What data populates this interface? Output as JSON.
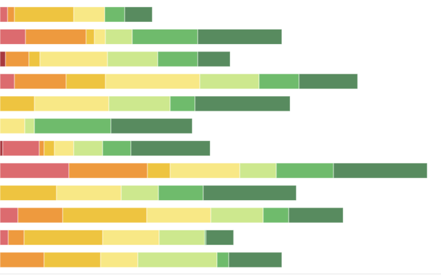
{
  "chart_data": {
    "type": "bar",
    "orientation": "horizontal",
    "stacked": true,
    "title": "",
    "xlabel": "",
    "ylabel": "",
    "grid": false,
    "legend": "none",
    "xlim": [
      0,
      640
    ],
    "colors": [
      "#a8393f",
      "#dc6b6f",
      "#ee9a3e",
      "#eec440",
      "#f8e886",
      "#cde88e",
      "#6fbb6c",
      "#588b5f"
    ],
    "series": [
      {
        "values": [
          0,
          0,
          8,
          0,
          0,
          0,
          4,
          0,
          0,
          0,
          0,
          0
        ]
      },
      {
        "values": [
          11,
          37,
          0,
          21,
          0,
          0,
          53,
          100,
          0,
          26,
          12,
          0
        ]
      },
      {
        "values": [
          10,
          88,
          34,
          75,
          0,
          0,
          7,
          114,
          0,
          65,
          23,
          64
        ]
      },
      {
        "values": [
          86,
          12,
          16,
          57,
          50,
          0,
          15,
          33,
          82,
          122,
          114,
          82
        ]
      },
      {
        "values": [
          45,
          16,
          98,
          137,
          108,
          36,
          28,
          101,
          94,
          93,
          82,
          54
        ]
      },
      {
        "values": [
          0,
          39,
          73,
          86,
          89,
          14,
          42,
          53,
          54,
          76,
          66,
          115
        ]
      },
      {
        "values": [
          29,
          95,
          58,
          58,
          36,
          111,
          41,
          83,
          65,
          37,
          2,
          17
        ]
      },
      {
        "values": [
          40,
          122,
          47,
          85,
          138,
          118,
          115,
          136,
          135,
          79,
          40,
          77
        ]
      }
    ]
  }
}
